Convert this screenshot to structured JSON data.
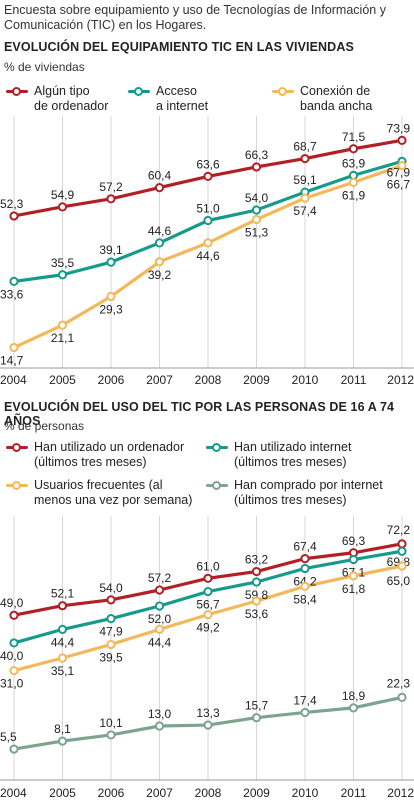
{
  "intro": "Encuesta sobre equipamiento y uso de Tecnologías de Información y Comunicación (TIC) en los Hogares.",
  "colors": {
    "red": "#b31f24",
    "teal": "#179a8a",
    "orange": "#f3b85a",
    "grey": "#7ea38f",
    "grid": "#d7d7d7"
  },
  "chart_data": [
    {
      "type": "line",
      "title": "EVOLUCIÓN DEL EQUIPAMIENTO TIC EN LAS VIVIENDAS",
      "ylabel": "% de viviendas",
      "x": [
        "2004",
        "2005",
        "2006",
        "2007",
        "2008",
        "2009",
        "2010",
        "2011",
        "2012"
      ],
      "ylim": [
        10,
        78
      ],
      "grid": true,
      "legend_position": "top",
      "series": [
        {
          "name": "Algún tipo\nde ordenador",
          "color": "#b31f24",
          "values": [
            52.3,
            54.9,
            57.2,
            60.4,
            63.6,
            66.3,
            68.7,
            71.5,
            73.9
          ],
          "labels": [
            "52,3",
            "54,9",
            "57,2",
            "60,4",
            "63,6",
            "66,3",
            "68,7",
            "71,5",
            "73,9"
          ]
        },
        {
          "name": "Acceso\na internet",
          "color": "#179a8a",
          "values": [
            33.6,
            35.5,
            39.1,
            44.6,
            51.0,
            54.0,
            59.1,
            63.9,
            67.9
          ],
          "labels": [
            "33,6",
            "35,5",
            "39,1",
            "44,6",
            "51,0",
            "54,0",
            "59,1",
            "63,9",
            "67,9"
          ]
        },
        {
          "name": "Conexión de\nbanda ancha",
          "color": "#f3b85a",
          "values": [
            14.7,
            21.1,
            29.3,
            39.2,
            44.6,
            51.3,
            57.4,
            61.9,
            66.7
          ],
          "labels": [
            "14,7",
            "21,1",
            "29,3",
            "39,2",
            "44,6",
            "51,3",
            "57,4",
            "61,9",
            "66,7"
          ]
        }
      ]
    },
    {
      "type": "line",
      "title": "EVOLUCIÓN DEL USO DEL TIC POR LAS PERSONAS DE 16 A 74 AÑOS",
      "ylabel": "% de personas",
      "x": [
        "2004",
        "2005",
        "2006",
        "2007",
        "2008",
        "2009",
        "2010",
        "2011",
        "2012"
      ],
      "ylim": [
        0,
        78
      ],
      "grid": true,
      "legend_position": "top",
      "series": [
        {
          "name": "Han utilizado un ordenador\n(últimos tres meses)",
          "color": "#b31f24",
          "values": [
            49.0,
            52.1,
            54.0,
            57.2,
            61.0,
            63.2,
            67.4,
            69.3,
            72.2
          ],
          "labels": [
            "49,0",
            "52,1",
            "54,0",
            "57,2",
            "61,0",
            "63,2",
            "67,4",
            "69,3",
            "72,2"
          ]
        },
        {
          "name": "Han utilizado internet\n(últimos tres meses)",
          "color": "#179a8a",
          "values": [
            40.0,
            44.4,
            47.9,
            52.0,
            56.7,
            59.8,
            64.2,
            67.1,
            69.8
          ],
          "labels": [
            "40,0",
            "44,4",
            "47,9",
            "52,0",
            "56,7",
            "59,8",
            "64,2",
            "67,1",
            "69,8"
          ]
        },
        {
          "name": "Usuarios frecuentes (al\nmenos una vez por semana)",
          "color": "#f3b85a",
          "values": [
            31.0,
            35.1,
            39.5,
            44.4,
            49.2,
            53.6,
            58.4,
            61.8,
            65.0
          ],
          "labels": [
            "31,0",
            "35,1",
            "39,5",
            "44,4",
            "49,2",
            "53,6",
            "58,4",
            "61,8",
            "65,0"
          ]
        },
        {
          "name": "Han comprado por internet\n(últimos tres meses)",
          "color": "#7ea38f",
          "values": [
            5.5,
            8.1,
            10.1,
            13.0,
            13.3,
            15.7,
            17.4,
            18.9,
            22.3
          ],
          "labels": [
            "5,5",
            "8,1",
            "10,1",
            "13,0",
            "13,3",
            "15,7",
            "17,4",
            "18,9",
            "22,3"
          ]
        }
      ]
    }
  ]
}
